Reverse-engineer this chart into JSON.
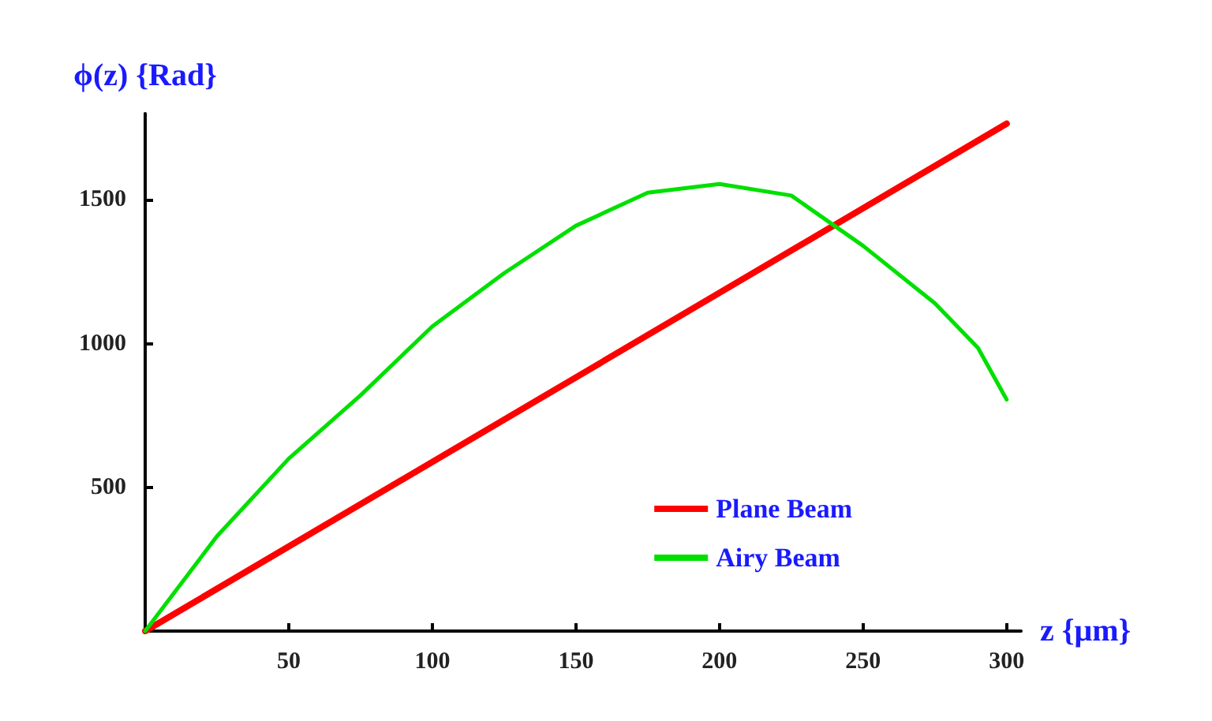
{
  "chart_data": {
    "type": "line",
    "xlabel": "z {μm}",
    "ylabel": "ϕ(z) {Rad}",
    "xlim": [
      0,
      305
    ],
    "xticks": [
      50,
      100,
      150,
      200,
      250,
      300
    ],
    "ylim": [
      0,
      1800
    ],
    "yticks": [
      500,
      1000,
      1500
    ],
    "grid": false,
    "legend": "bottom right",
    "marker": "none",
    "line_style": "solid",
    "series": [
      {
        "name": "Plane Beam",
        "color": "#ff0000",
        "x": [
          0,
          300
        ],
        "values": [
          0,
          1765
        ]
      },
      {
        "name": "Airy Beam",
        "color": "#00e000",
        "x": [
          0,
          25,
          50,
          75,
          100,
          125,
          150,
          175,
          200,
          225,
          250,
          275,
          290,
          300
        ],
        "values": [
          0,
          330,
          600,
          820,
          1060,
          1245,
          1410,
          1525,
          1555,
          1515,
          1340,
          1140,
          985,
          805
        ]
      }
    ]
  }
}
